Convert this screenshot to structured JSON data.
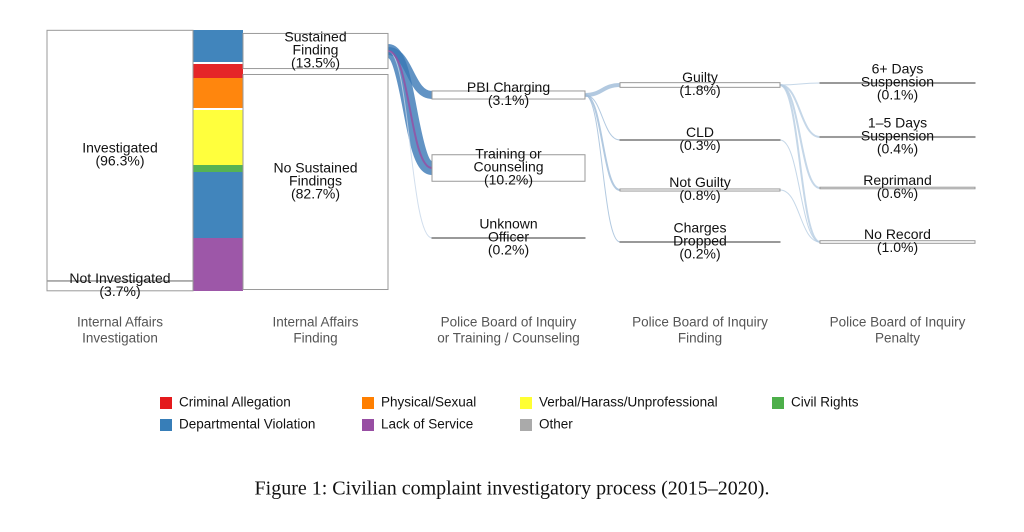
{
  "chart_data": {
    "type": "sankey",
    "stages": [
      {
        "title": [
          "Internal Affairs",
          "Investigation"
        ],
        "nodes": [
          {
            "name": [
              "Investigated"
            ],
            "value": 96.3,
            "value_label": "(96.3%)"
          },
          {
            "name": [
              "Not Investigated"
            ],
            "value": 3.7,
            "value_label": "(3.7%)"
          }
        ]
      },
      {
        "title": [
          "Internal Affairs",
          "Finding"
        ],
        "nodes": [
          {
            "name": [
              "Sustained",
              "Finding"
            ],
            "value": 13.5,
            "value_label": "(13.5%)"
          },
          {
            "name": [
              "No Sustained",
              "Findings"
            ],
            "value": 82.7,
            "value_label": "(82.7%)"
          }
        ]
      },
      {
        "title": [
          "Police Board of Inquiry",
          "or Training / Counseling"
        ],
        "nodes": [
          {
            "name": [
              "PBI Charging"
            ],
            "value": 3.1,
            "value_label": "(3.1%)"
          },
          {
            "name": [
              "Training or",
              "Counseling"
            ],
            "value": 10.2,
            "value_label": "(10.2%)"
          },
          {
            "name": [
              "Unknown",
              "Officer"
            ],
            "value": 0.2,
            "value_label": "(0.2%)"
          }
        ]
      },
      {
        "title": [
          "Police Board of Inquiry",
          "Finding"
        ],
        "nodes": [
          {
            "name": [
              "Guilty"
            ],
            "value": 1.8,
            "value_label": "(1.8%)"
          },
          {
            "name": [
              "CLD"
            ],
            "value": 0.3,
            "value_label": "(0.3%)"
          },
          {
            "name": [
              "Not Guilty"
            ],
            "value": 0.8,
            "value_label": "(0.8%)"
          },
          {
            "name": [
              "Charges",
              "Dropped"
            ],
            "value": 0.2,
            "value_label": "(0.2%)"
          }
        ]
      },
      {
        "title": [
          "Police Board of Inquiry",
          "Penalty"
        ],
        "nodes": [
          {
            "name": [
              "6+ Days",
              "Suspension"
            ],
            "value": 0.1,
            "value_label": "(0.1%)"
          },
          {
            "name": [
              "1–5 Days",
              "Suspension"
            ],
            "value": 0.4,
            "value_label": "(0.4%)"
          },
          {
            "name": [
              "Reprimand"
            ],
            "value": 0.6,
            "value_label": "(0.6%)"
          },
          {
            "name": [
              "No Record"
            ],
            "value": 1.0,
            "value_label": "(1.0%)"
          }
        ]
      }
    ],
    "legend": [
      {
        "name": "Criminal Allegation",
        "color": "#e41a1c"
      },
      {
        "name": "Physical/Sexual",
        "color": "#ff7f00"
      },
      {
        "name": "Verbal/Harass/Unprofessional",
        "color": "#ffff33"
      },
      {
        "name": "Civil Rights",
        "color": "#4daf4a"
      },
      {
        "name": "Departmental Violation",
        "color": "#377eb8"
      },
      {
        "name": "Lack of Service",
        "color": "#984ea3"
      },
      {
        "name": "Other",
        "color": "#aaaaaa"
      }
    ],
    "caption": "Figure 1: Civilian complaint investigatory process (2015–2020)."
  }
}
